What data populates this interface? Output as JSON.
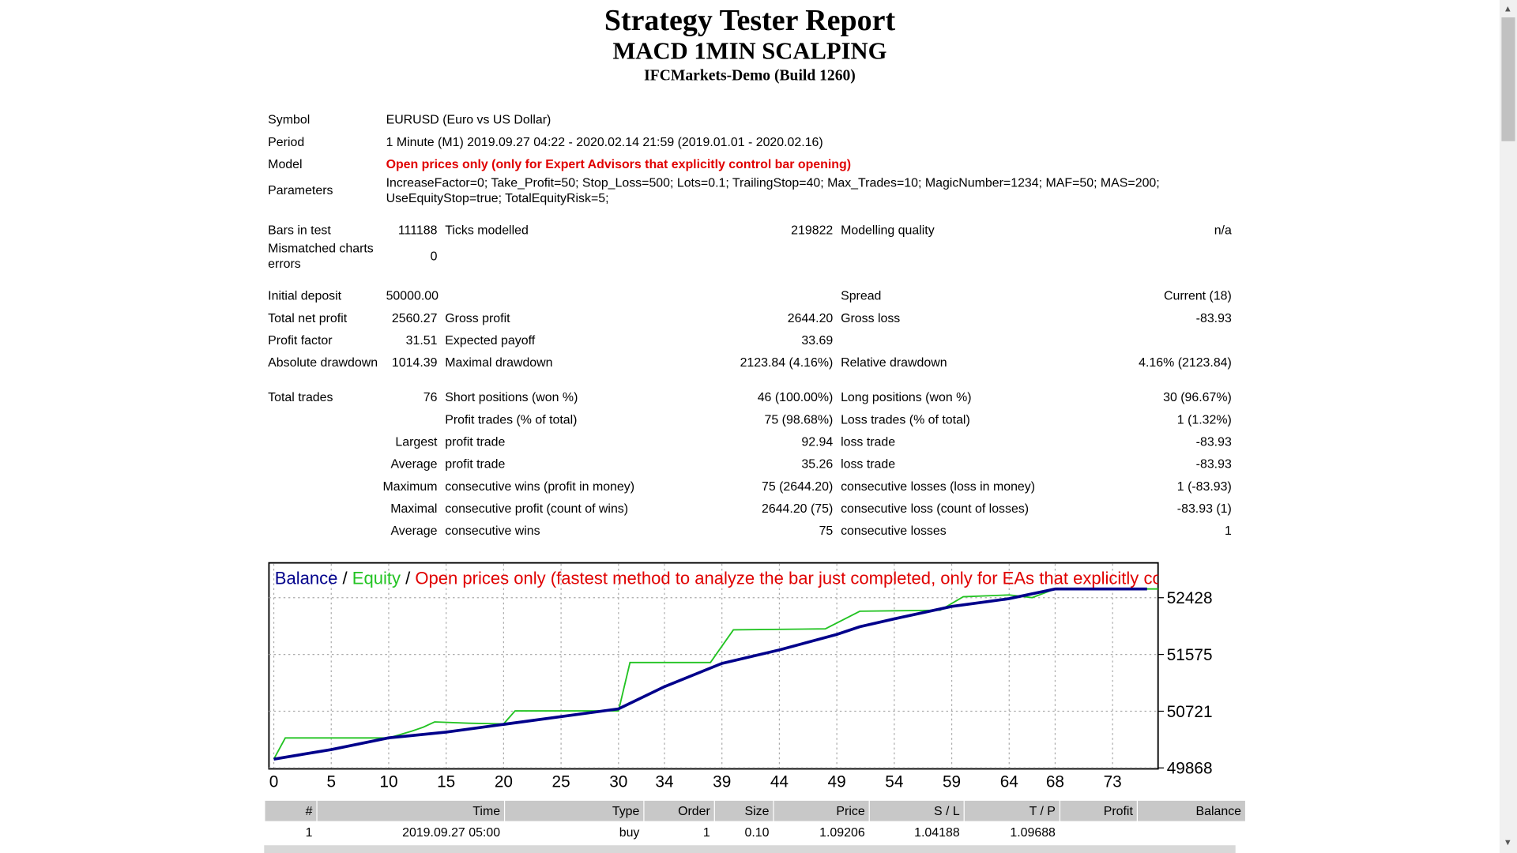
{
  "header": {
    "title": "Strategy Tester Report",
    "subtitle": "MACD 1MIN SCALPING",
    "server": "IFCMarkets-Demo (Build 1260)"
  },
  "summary": {
    "rows": [
      [
        "Symbol",
        "EURUSD (Euro vs US Dollar)"
      ],
      [
        "Period",
        "1 Minute (M1) 2019.09.27 04:22 - 2020.02.14 21:59 (2019.01.01 - 2020.02.16)"
      ],
      [
        "Model",
        "Open prices only (only for Expert Advisors that explicitly control bar opening)"
      ],
      [
        "Parameters",
        "IncreaseFactor=0; Take_Profit=50; Stop_Loss=500; Lots=0.1; TrailingStop=40; Max_Trades=10; MagicNumber=1234; MAF=50; MAS=200; UseEquityStop=true; TotalEquityRisk=5;"
      ],
      [
        "Bars in test",
        "111188",
        "Ticks modelled",
        "219822",
        "Modelling quality",
        "n/a"
      ],
      [
        "Mismatched charts errors",
        "0"
      ],
      [
        "Initial deposit",
        "50000.00",
        "Spread",
        "Current (18)"
      ],
      [
        "Total net profit",
        "2560.27",
        "Gross profit",
        "2644.20",
        "Gross loss",
        "-83.93"
      ],
      [
        "Profit factor",
        "31.51",
        "Expected payoff",
        "33.69"
      ],
      [
        "Absolute drawdown",
        "1014.39",
        "Maximal drawdown",
        "2123.84 (4.16%)",
        "Relative drawdown",
        "4.16% (2123.84)"
      ],
      [
        "Total trades",
        "76",
        "Short positions (won %)",
        "46 (100.00%)",
        "Long positions (won %)",
        "30 (96.67%)"
      ],
      [
        "Profit trades (% of total)",
        "75 (98.68%)",
        "Loss trades (% of total)",
        "1 (1.32%)"
      ],
      [
        "Largest",
        "profit trade",
        "92.94",
        "loss trade",
        "-83.93"
      ],
      [
        "Average",
        "profit trade",
        "35.26",
        "loss trade",
        "-83.93"
      ],
      [
        "Maximum",
        "consecutive wins (profit in money)",
        "75 (2644.20)",
        "consecutive losses (loss in money)",
        "1 (-83.93)"
      ],
      [
        "Maximal",
        "consecutive profit (count of wins)",
        "2644.20 (75)",
        "consecutive loss (count of losses)",
        "-83.93 (1)"
      ],
      [
        "Average",
        "consecutive wins",
        "75",
        "consecutive losses",
        "1"
      ]
    ]
  },
  "chart_data": {
    "type": "line",
    "legend_separator": "/",
    "description": "Open prices only (fastest method to analyze the bar just completed, only for EAs that explicitly control b",
    "xlim": [
      0,
      77
    ],
    "xticks": [
      0,
      5,
      10,
      15,
      20,
      25,
      30,
      34,
      39,
      44,
      49,
      54,
      59,
      64,
      68,
      73
    ],
    "ylim": [
      49868,
      52938
    ],
    "yticks": [
      49868,
      50721,
      51575,
      52428
    ],
    "grid": true,
    "series": [
      {
        "name": "Balance",
        "color": "#00008b",
        "x": [
          0,
          5,
          10,
          15,
          20,
          25,
          30,
          34,
          39,
          44,
          49,
          51,
          54,
          59,
          64,
          68,
          72,
          76
        ],
        "values": [
          50000,
          50144,
          50320,
          50406,
          50523,
          50639,
          50756,
          51090,
          51440,
          51643,
          51876,
          51992,
          52110,
          52297,
          52414,
          52560,
          52560,
          52560
        ]
      },
      {
        "name": "Equity",
        "color": "#22c322",
        "x": [
          0,
          1,
          10,
          12,
          13,
          14,
          17,
          20,
          21,
          30,
          31,
          38,
          40,
          48,
          51,
          58,
          60,
          64,
          66,
          68,
          77
        ],
        "values": [
          50000,
          50319,
          50319,
          50420,
          50480,
          50560,
          50540,
          50530,
          50726,
          50726,
          51454,
          51454,
          51945,
          51960,
          52225,
          52240,
          52443,
          52470,
          52430,
          52560,
          52560
        ]
      }
    ]
  },
  "trades": {
    "columns": [
      "#",
      "Time",
      "Type",
      "Order",
      "Size",
      "Price",
      "S / L",
      "T / P",
      "Profit",
      "Balance"
    ],
    "rows": [
      [
        "1",
        "2019.09.27 05:00",
        "buy",
        "1",
        "0.10",
        "1.09206",
        "1.04188",
        "1.09688"
      ]
    ]
  }
}
